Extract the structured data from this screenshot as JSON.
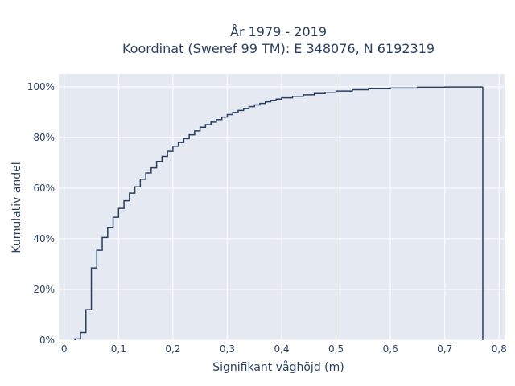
{
  "chart_data": {
    "type": "line",
    "line_shape": "step",
    "title_lines": [
      "År 1979 - 2019",
      "Koordinat (Sweref 99 TM): E 348076, N 6192319"
    ],
    "xlabel": "Signifikant våghöjd (m)",
    "ylabel": "Kumulativ andel",
    "xlim": [
      -0.01,
      0.81
    ],
    "ylim": [
      0,
      1.05
    ],
    "x_ticks": [
      0,
      0.1,
      0.2,
      0.3,
      0.4,
      0.5,
      0.6,
      0.7,
      0.8
    ],
    "x_tick_labels": [
      "0",
      "0,1",
      "0,2",
      "0,3",
      "0,4",
      "0,5",
      "0,6",
      "0,7",
      "0,8"
    ],
    "y_ticks": [
      0,
      0.2,
      0.4,
      0.6,
      0.8,
      1.0
    ],
    "y_tick_labels": [
      "0%",
      "20%",
      "40%",
      "60%",
      "80%",
      "100%"
    ],
    "grid": true,
    "colors": {
      "plot_bg": "#e5e9f2",
      "grid": "#ffffff",
      "line": "#2a3f5f",
      "text": "#2a3f5f"
    },
    "series": [
      {
        "x": [
          0.02,
          0.03,
          0.04,
          0.05,
          0.06,
          0.07,
          0.08,
          0.09,
          0.1,
          0.11,
          0.12,
          0.13,
          0.14,
          0.15,
          0.16,
          0.17,
          0.18,
          0.19,
          0.2,
          0.21,
          0.22,
          0.23,
          0.24,
          0.25,
          0.26,
          0.27,
          0.28,
          0.29,
          0.3,
          0.31,
          0.32,
          0.33,
          0.34,
          0.35,
          0.36,
          0.37,
          0.38,
          0.39,
          0.4,
          0.42,
          0.44,
          0.46,
          0.48,
          0.5,
          0.53,
          0.56,
          0.6,
          0.65,
          0.7,
          0.77
        ],
        "y": [
          0.005,
          0.03,
          0.12,
          0.285,
          0.355,
          0.405,
          0.445,
          0.485,
          0.52,
          0.55,
          0.58,
          0.605,
          0.635,
          0.66,
          0.68,
          0.705,
          0.725,
          0.745,
          0.765,
          0.78,
          0.795,
          0.81,
          0.825,
          0.84,
          0.85,
          0.86,
          0.87,
          0.88,
          0.89,
          0.898,
          0.906,
          0.914,
          0.921,
          0.928,
          0.934,
          0.94,
          0.946,
          0.951,
          0.956,
          0.962,
          0.968,
          0.973,
          0.978,
          0.983,
          0.988,
          0.992,
          0.995,
          0.998,
          0.999,
          1.0
        ]
      }
    ]
  }
}
